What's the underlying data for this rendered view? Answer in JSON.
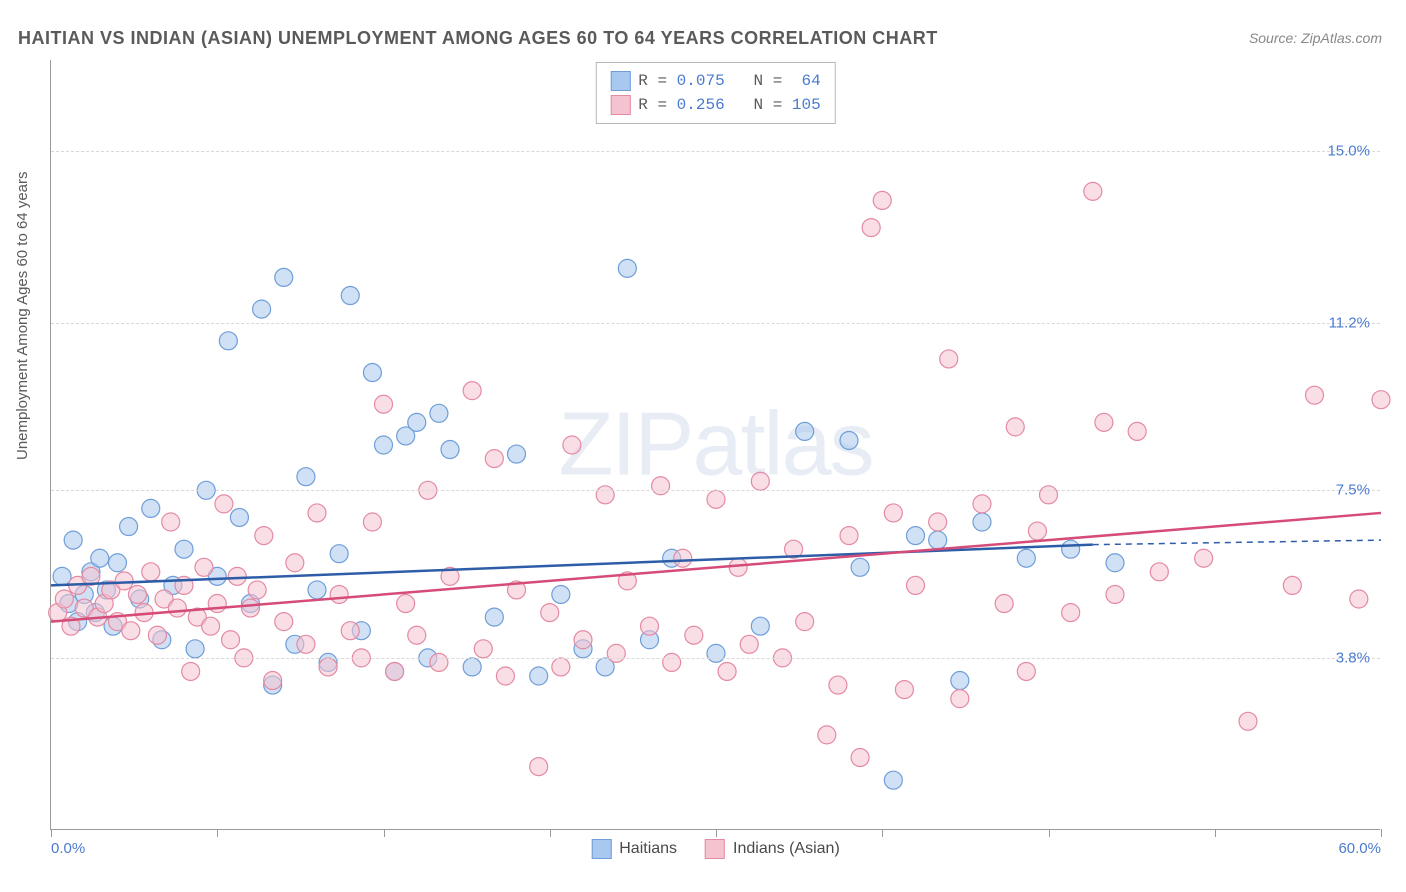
{
  "title": "HAITIAN VS INDIAN (ASIAN) UNEMPLOYMENT AMONG AGES 60 TO 64 YEARS CORRELATION CHART",
  "source": "Source: ZipAtlas.com",
  "y_axis_label": "Unemployment Among Ages 60 to 64 years",
  "watermark": "ZIPatlas",
  "chart": {
    "type": "scatter",
    "xlim": [
      0,
      60
    ],
    "ylim": [
      0,
      17
    ],
    "y_ticks": [
      {
        "value": 3.8,
        "label": "3.8%"
      },
      {
        "value": 7.5,
        "label": "7.5%"
      },
      {
        "value": 11.2,
        "label": "11.2%"
      },
      {
        "value": 15.0,
        "label": "15.0%"
      }
    ],
    "x_tick_positions": [
      0,
      7.5,
      15,
      22.5,
      30,
      37.5,
      45,
      52.5,
      60
    ],
    "x_labels": [
      {
        "value": 0,
        "label": "0.0%"
      },
      {
        "value": 60,
        "label": "60.0%"
      }
    ],
    "background_color": "#ffffff",
    "grid_color": "#d8d8d8",
    "marker_radius": 9,
    "marker_opacity": 0.55,
    "series": [
      {
        "name": "Haitians",
        "color_fill": "#a9c8ef",
        "color_stroke": "#6f9ed8",
        "r_value": "0.075",
        "n_value": "64",
        "trend": {
          "x1": 0,
          "y1": 5.4,
          "x2": 47,
          "y2": 6.3,
          "x_dash_to": 60,
          "y_dash_to": 6.4,
          "color": "#2e5da8",
          "width": 2.5
        },
        "points": [
          [
            0.5,
            5.6
          ],
          [
            0.8,
            5.0
          ],
          [
            1.0,
            6.4
          ],
          [
            1.2,
            4.6
          ],
          [
            1.5,
            5.2
          ],
          [
            1.8,
            5.7
          ],
          [
            2.0,
            4.8
          ],
          [
            2.2,
            6.0
          ],
          [
            2.5,
            5.3
          ],
          [
            2.8,
            4.5
          ],
          [
            3.0,
            5.9
          ],
          [
            3.5,
            6.7
          ],
          [
            4.0,
            5.1
          ],
          [
            4.5,
            7.1
          ],
          [
            5.0,
            4.2
          ],
          [
            5.5,
            5.4
          ],
          [
            6.0,
            6.2
          ],
          [
            6.5,
            4.0
          ],
          [
            7.0,
            7.5
          ],
          [
            7.5,
            5.6
          ],
          [
            8.0,
            10.8
          ],
          [
            8.5,
            6.9
          ],
          [
            9.0,
            5.0
          ],
          [
            9.5,
            11.5
          ],
          [
            10.0,
            3.2
          ],
          [
            10.5,
            12.2
          ],
          [
            11.0,
            4.1
          ],
          [
            11.5,
            7.8
          ],
          [
            12.0,
            5.3
          ],
          [
            12.5,
            3.7
          ],
          [
            13.0,
            6.1
          ],
          [
            13.5,
            11.8
          ],
          [
            14.0,
            4.4
          ],
          [
            14.5,
            10.1
          ],
          [
            15.0,
            8.5
          ],
          [
            15.5,
            3.5
          ],
          [
            16.0,
            8.7
          ],
          [
            16.5,
            9.0
          ],
          [
            17.0,
            3.8
          ],
          [
            17.5,
            9.2
          ],
          [
            18.0,
            8.4
          ],
          [
            19.0,
            3.6
          ],
          [
            20.0,
            4.7
          ],
          [
            21.0,
            8.3
          ],
          [
            22.0,
            3.4
          ],
          [
            23.0,
            5.2
          ],
          [
            24.0,
            4.0
          ],
          [
            25.0,
            3.6
          ],
          [
            26.0,
            12.4
          ],
          [
            27.0,
            4.2
          ],
          [
            28.0,
            6.0
          ],
          [
            30.0,
            3.9
          ],
          [
            32.0,
            4.5
          ],
          [
            34.0,
            8.8
          ],
          [
            36.0,
            8.6
          ],
          [
            36.5,
            5.8
          ],
          [
            38.0,
            1.1
          ],
          [
            39.0,
            6.5
          ],
          [
            40.0,
            6.4
          ],
          [
            41.0,
            3.3
          ],
          [
            42.0,
            6.8
          ],
          [
            44.0,
            6.0
          ],
          [
            46.0,
            6.2
          ],
          [
            48.0,
            5.9
          ]
        ]
      },
      {
        "name": "Indians (Asian)",
        "color_fill": "#f4c3cf",
        "color_stroke": "#e48aa3",
        "r_value": "0.256",
        "n_value": "105",
        "trend": {
          "x1": 0,
          "y1": 4.6,
          "x2": 60,
          "y2": 7.0,
          "color": "#d64b77",
          "width": 2.5
        },
        "points": [
          [
            0.3,
            4.8
          ],
          [
            0.6,
            5.1
          ],
          [
            0.9,
            4.5
          ],
          [
            1.2,
            5.4
          ],
          [
            1.5,
            4.9
          ],
          [
            1.8,
            5.6
          ],
          [
            2.1,
            4.7
          ],
          [
            2.4,
            5.0
          ],
          [
            2.7,
            5.3
          ],
          [
            3.0,
            4.6
          ],
          [
            3.3,
            5.5
          ],
          [
            3.6,
            4.4
          ],
          [
            3.9,
            5.2
          ],
          [
            4.2,
            4.8
          ],
          [
            4.5,
            5.7
          ],
          [
            4.8,
            4.3
          ],
          [
            5.1,
            5.1
          ],
          [
            5.4,
            6.8
          ],
          [
            5.7,
            4.9
          ],
          [
            6.0,
            5.4
          ],
          [
            6.3,
            3.5
          ],
          [
            6.6,
            4.7
          ],
          [
            6.9,
            5.8
          ],
          [
            7.2,
            4.5
          ],
          [
            7.5,
            5.0
          ],
          [
            7.8,
            7.2
          ],
          [
            8.1,
            4.2
          ],
          [
            8.4,
            5.6
          ],
          [
            8.7,
            3.8
          ],
          [
            9.0,
            4.9
          ],
          [
            9.3,
            5.3
          ],
          [
            9.6,
            6.5
          ],
          [
            10.0,
            3.3
          ],
          [
            10.5,
            4.6
          ],
          [
            11.0,
            5.9
          ],
          [
            11.5,
            4.1
          ],
          [
            12.0,
            7.0
          ],
          [
            12.5,
            3.6
          ],
          [
            13.0,
            5.2
          ],
          [
            13.5,
            4.4
          ],
          [
            14.0,
            3.8
          ],
          [
            14.5,
            6.8
          ],
          [
            15.0,
            9.4
          ],
          [
            15.5,
            3.5
          ],
          [
            16.0,
            5.0
          ],
          [
            16.5,
            4.3
          ],
          [
            17.0,
            7.5
          ],
          [
            17.5,
            3.7
          ],
          [
            18.0,
            5.6
          ],
          [
            19.0,
            9.7
          ],
          [
            19.5,
            4.0
          ],
          [
            20.0,
            8.2
          ],
          [
            20.5,
            3.4
          ],
          [
            21.0,
            5.3
          ],
          [
            22.0,
            1.4
          ],
          [
            22.5,
            4.8
          ],
          [
            23.0,
            3.6
          ],
          [
            23.5,
            8.5
          ],
          [
            24.0,
            4.2
          ],
          [
            25.0,
            7.4
          ],
          [
            25.5,
            3.9
          ],
          [
            26.0,
            5.5
          ],
          [
            27.0,
            4.5
          ],
          [
            27.5,
            7.6
          ],
          [
            28.0,
            3.7
          ],
          [
            28.5,
            6.0
          ],
          [
            29.0,
            4.3
          ],
          [
            30.0,
            7.3
          ],
          [
            30.5,
            3.5
          ],
          [
            31.0,
            5.8
          ],
          [
            31.5,
            4.1
          ],
          [
            32.0,
            7.7
          ],
          [
            33.0,
            3.8
          ],
          [
            33.5,
            6.2
          ],
          [
            34.0,
            4.6
          ],
          [
            35.0,
            2.1
          ],
          [
            35.5,
            3.2
          ],
          [
            36.0,
            6.5
          ],
          [
            36.5,
            1.6
          ],
          [
            37.0,
            13.3
          ],
          [
            37.5,
            13.9
          ],
          [
            38.0,
            7.0
          ],
          [
            38.5,
            3.1
          ],
          [
            39.0,
            5.4
          ],
          [
            40.0,
            6.8
          ],
          [
            40.5,
            10.4
          ],
          [
            41.0,
            2.9
          ],
          [
            42.0,
            7.2
          ],
          [
            43.0,
            5.0
          ],
          [
            43.5,
            8.9
          ],
          [
            44.0,
            3.5
          ],
          [
            44.5,
            6.6
          ],
          [
            45.0,
            7.4
          ],
          [
            46.0,
            4.8
          ],
          [
            47.0,
            14.1
          ],
          [
            47.5,
            9.0
          ],
          [
            48.0,
            5.2
          ],
          [
            49.0,
            8.8
          ],
          [
            50.0,
            5.7
          ],
          [
            52.0,
            6.0
          ],
          [
            54.0,
            2.4
          ],
          [
            56.0,
            5.4
          ],
          [
            57.0,
            9.6
          ],
          [
            59.0,
            5.1
          ],
          [
            60.0,
            9.5
          ]
        ]
      }
    ]
  },
  "legend_box": {
    "rows": [
      {
        "swatch_fill": "#a9c8ef",
        "swatch_stroke": "#6f9ed8",
        "r": "0.075",
        "n": " 64"
      },
      {
        "swatch_fill": "#f4c3cf",
        "swatch_stroke": "#e48aa3",
        "r": "0.256",
        "n": "105"
      }
    ]
  },
  "bottom_legend": [
    {
      "swatch_fill": "#a9c8ef",
      "swatch_stroke": "#6f9ed8",
      "label": "Haitians"
    },
    {
      "swatch_fill": "#f4c3cf",
      "swatch_stroke": "#e48aa3",
      "label": "Indians (Asian)"
    }
  ]
}
